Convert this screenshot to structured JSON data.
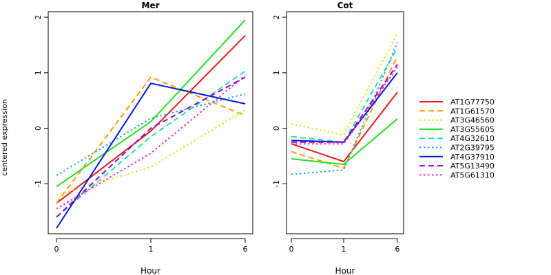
{
  "ylabel": "centered expression",
  "xlabel": "Hour",
  "chart_data": {
    "type": "line",
    "categories": [
      "0",
      "1",
      "6"
    ],
    "legend_position": "right",
    "panels": [
      {
        "title": "Mer",
        "ylim": [
          -1.9,
          2.1
        ],
        "yticks": [
          "-1",
          "0",
          "1",
          "2"
        ],
        "series": [
          {
            "name": "AT1G77750",
            "values": [
              -1.35,
              -0.05,
              1.67
            ]
          },
          {
            "name": "AT1G61570",
            "values": [
              -1.35,
              0.92,
              0.23
            ]
          },
          {
            "name": "AT3G46560",
            "values": [
              -1.2,
              -0.7,
              0.33
            ]
          },
          {
            "name": "AT3G55605",
            "values": [
              -1.05,
              0.12,
              1.95
            ]
          },
          {
            "name": "AT4G32610",
            "values": [
              -1.6,
              -0.15,
              1.03
            ]
          },
          {
            "name": "AT2G39795",
            "values": [
              -0.85,
              0.18,
              0.62
            ]
          },
          {
            "name": "AT4G37910",
            "values": [
              -1.8,
              0.81,
              0.44
            ]
          },
          {
            "name": "AT5G13490",
            "values": [
              -1.6,
              0.0,
              0.92
            ]
          },
          {
            "name": "AT5G61310",
            "values": [
              -1.45,
              -0.45,
              0.95
            ]
          }
        ]
      },
      {
        "title": "Cot",
        "ylim": [
          -1.9,
          2.1
        ],
        "yticks": [
          "-1",
          "0",
          "1",
          "2"
        ],
        "series": [
          {
            "name": "AT1G77750",
            "values": [
              -0.28,
              -0.6,
              0.65
            ]
          },
          {
            "name": "AT1G61570",
            "values": [
              -0.42,
              -0.72,
              1.3
            ]
          },
          {
            "name": "AT3G46560",
            "values": [
              0.08,
              -0.12,
              1.72
            ]
          },
          {
            "name": "AT3G55605",
            "values": [
              -0.55,
              -0.65,
              0.17
            ]
          },
          {
            "name": "AT4G32610",
            "values": [
              -0.15,
              -0.25,
              1.45
            ]
          },
          {
            "name": "AT2G39795",
            "values": [
              -0.83,
              -0.75,
              1.55
            ]
          },
          {
            "name": "AT4G37910",
            "values": [
              -0.22,
              -0.25,
              1.0
            ]
          },
          {
            "name": "AT5G13490",
            "values": [
              -0.25,
              -0.25,
              1.15
            ]
          },
          {
            "name": "AT5G61310",
            "values": [
              -0.28,
              -0.28,
              1.1
            ]
          }
        ]
      }
    ],
    "legend": [
      {
        "name": "AT1G77750",
        "color": "#e31a1c",
        "dash": "solid"
      },
      {
        "name": "AT1G61570",
        "color": "#ff9900",
        "dash": "dashed"
      },
      {
        "name": "AT3G46560",
        "color": "#ccee22",
        "dash": "dotted"
      },
      {
        "name": "AT3G55605",
        "color": "#22dd22",
        "dash": "solid"
      },
      {
        "name": "AT4G32610",
        "color": "#22ddaa",
        "dash": "dashed"
      },
      {
        "name": "AT2G39795",
        "color": "#1ea7d8",
        "dash": "dotted"
      },
      {
        "name": "AT4G37910",
        "color": "#0018d8",
        "dash": "solid"
      },
      {
        "name": "AT5G13490",
        "color": "#9900cc",
        "dash": "dashed"
      },
      {
        "name": "AT5G61310",
        "color": "#ee22bb",
        "dash": "dotted"
      }
    ]
  }
}
